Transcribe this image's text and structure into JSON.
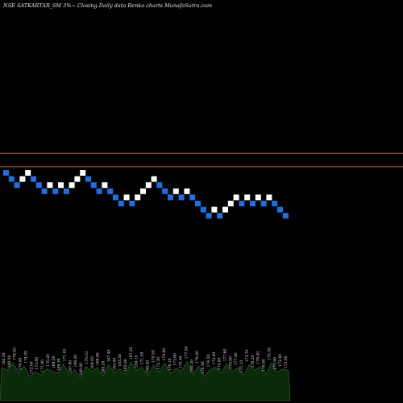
{
  "title": "NSE SATKARTAR_SM 3%~  Closing Daily data  Renko  charts MunafaSutra.com",
  "colors": {
    "background": "#000000",
    "up_brick": "#ffffff",
    "down_brick": "#1e6fe0",
    "reference_line": "#b5642a",
    "volume": "#0b2a0b",
    "volume_edge": "#2f6f2f"
  },
  "chart_data": {
    "type": "renko",
    "reference_lines": [
      1,
      3.2
    ],
    "bricks": [
      {
        "dir": "down",
        "level": 0
      },
      {
        "dir": "down",
        "level": -1
      },
      {
        "dir": "down",
        "level": -2
      },
      {
        "dir": "up",
        "level": -1
      },
      {
        "dir": "up",
        "level": 0
      },
      {
        "dir": "down",
        "level": -1
      },
      {
        "dir": "down",
        "level": -2
      },
      {
        "dir": "down",
        "level": -3
      },
      {
        "dir": "up",
        "level": -2
      },
      {
        "dir": "down",
        "level": -3
      },
      {
        "dir": "up",
        "level": -2
      },
      {
        "dir": "down",
        "level": -3
      },
      {
        "dir": "up",
        "level": -2
      },
      {
        "dir": "up",
        "level": -1
      },
      {
        "dir": "up",
        "level": 0
      },
      {
        "dir": "down",
        "level": -1
      },
      {
        "dir": "down",
        "level": -2
      },
      {
        "dir": "down",
        "level": -3
      },
      {
        "dir": "up",
        "level": -2
      },
      {
        "dir": "down",
        "level": -3
      },
      {
        "dir": "down",
        "level": -4
      },
      {
        "dir": "down",
        "level": -5
      },
      {
        "dir": "up",
        "level": -4
      },
      {
        "dir": "down",
        "level": -5
      },
      {
        "dir": "up",
        "level": -4
      },
      {
        "dir": "up",
        "level": -3
      },
      {
        "dir": "up",
        "level": -2
      },
      {
        "dir": "up",
        "level": -1
      },
      {
        "dir": "down",
        "level": -2
      },
      {
        "dir": "down",
        "level": -3
      },
      {
        "dir": "down",
        "level": -4
      },
      {
        "dir": "up",
        "level": -3
      },
      {
        "dir": "down",
        "level": -4
      },
      {
        "dir": "up",
        "level": -3
      },
      {
        "dir": "down",
        "level": -4
      },
      {
        "dir": "down",
        "level": -5
      },
      {
        "dir": "down",
        "level": -6
      },
      {
        "dir": "down",
        "level": -7
      },
      {
        "dir": "up",
        "level": -6
      },
      {
        "dir": "down",
        "level": -7
      },
      {
        "dir": "up",
        "level": -6
      },
      {
        "dir": "up",
        "level": -5
      },
      {
        "dir": "up",
        "level": -4
      },
      {
        "dir": "down",
        "level": -5
      },
      {
        "dir": "up",
        "level": -4
      },
      {
        "dir": "down",
        "level": -5
      },
      {
        "dir": "up",
        "level": -4
      },
      {
        "dir": "down",
        "level": -5
      },
      {
        "dir": "up",
        "level": -4
      },
      {
        "dir": "down",
        "level": -5
      },
      {
        "dir": "down",
        "level": -6
      },
      {
        "dir": "down",
        "level": -7
      }
    ],
    "volume": [
      52,
      48,
      60,
      44,
      55,
      38,
      45,
      41,
      50,
      47,
      43,
      58,
      40,
      49,
      36,
      54,
      46,
      52,
      39,
      57,
      44,
      50,
      42,
      61,
      48,
      53,
      40,
      56,
      45,
      59,
      43,
      51,
      47,
      62,
      41,
      55,
      38,
      49,
      53,
      44,
      58,
      46,
      52,
      40,
      57,
      48,
      54,
      42,
      60,
      45,
      50,
      47
    ],
    "brick_labels": [
      "182.50",
      "180.00",
      "178.95",
      "176.00",
      "174.05",
      "172.00",
      "173.90",
      "171.80",
      "170.20",
      "168.50",
      "169.30",
      "171.05",
      "167.80",
      "166.40",
      "168.00",
      "170.10",
      "169.00",
      "166.80",
      "165.20",
      "167.40",
      "164.90",
      "163.50",
      "165.90",
      "167.20",
      "169.10",
      "171.00",
      "168.40",
      "170.50",
      "172.30",
      "174.80",
      "176.10",
      "173.60",
      "175.40",
      "177.90",
      "180.20",
      "178.00",
      "176.30",
      "174.50",
      "172.80",
      "175.00",
      "177.60",
      "179.90",
      "177.40",
      "175.10",
      "173.70",
      "176.20",
      "178.40",
      "176.90",
      "175.30",
      "173.90",
      "172.60",
      "173.00"
    ]
  }
}
